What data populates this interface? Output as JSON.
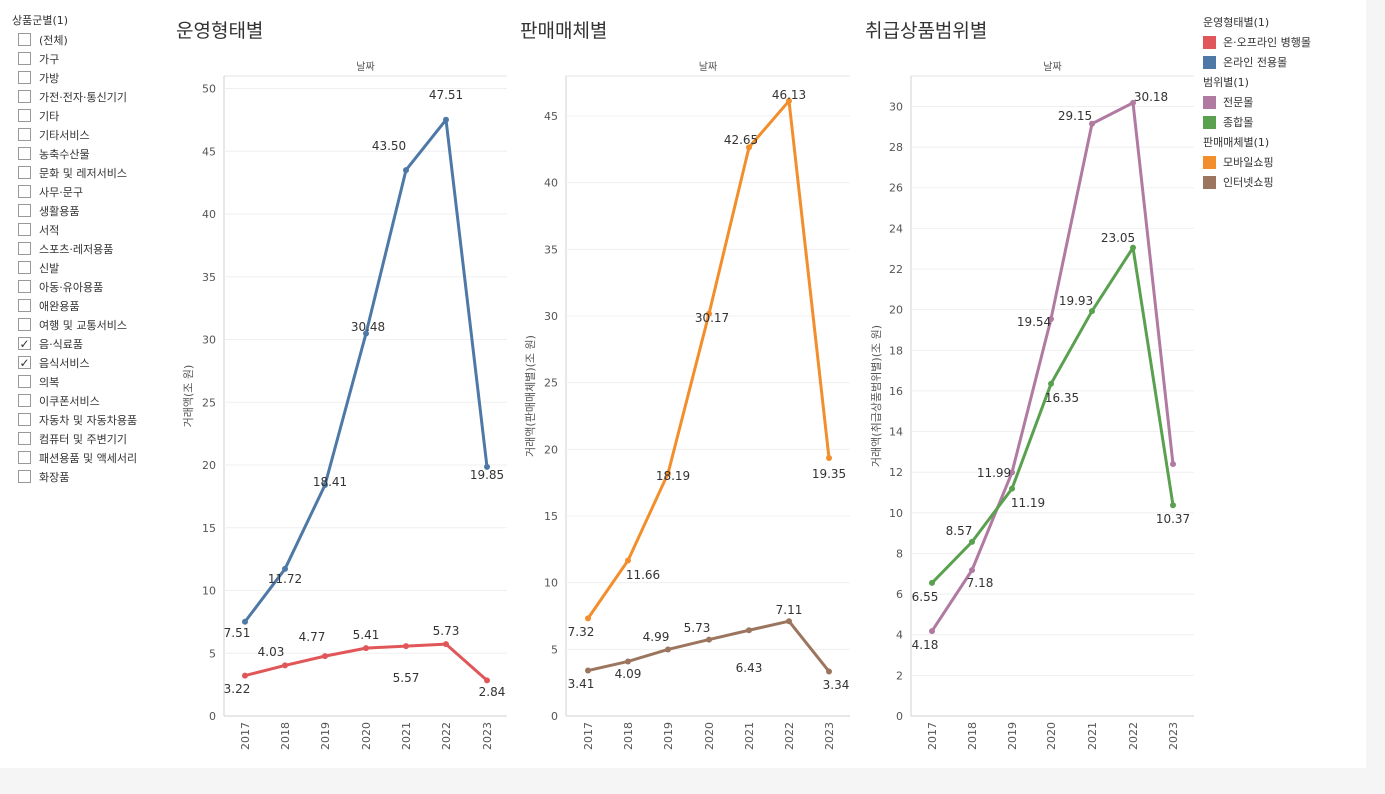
{
  "filter": {
    "title": "상품군별(1)",
    "items": [
      {
        "label": "(전체)",
        "checked": false
      },
      {
        "label": "가구",
        "checked": false
      },
      {
        "label": "가방",
        "checked": false
      },
      {
        "label": "가전·전자·통신기기",
        "checked": false
      },
      {
        "label": "기타",
        "checked": false
      },
      {
        "label": "기타서비스",
        "checked": false
      },
      {
        "label": "농축수산물",
        "checked": false
      },
      {
        "label": "문화 및 레저서비스",
        "checked": false
      },
      {
        "label": "사무·문구",
        "checked": false
      },
      {
        "label": "생활용품",
        "checked": false
      },
      {
        "label": "서적",
        "checked": false
      },
      {
        "label": "스포츠·레저용품",
        "checked": false
      },
      {
        "label": "신발",
        "checked": false
      },
      {
        "label": "아동·유아용품",
        "checked": false
      },
      {
        "label": "애완용품",
        "checked": false
      },
      {
        "label": "여행 및 교통서비스",
        "checked": false
      },
      {
        "label": "음·식료품",
        "checked": true
      },
      {
        "label": "음식서비스",
        "checked": true
      },
      {
        "label": "의복",
        "checked": false
      },
      {
        "label": "이쿠폰서비스",
        "checked": false
      },
      {
        "label": "자동차 및 자동차용품",
        "checked": false
      },
      {
        "label": "컴퓨터 및 주변기기",
        "checked": false
      },
      {
        "label": "패션용품 및 액세서리",
        "checked": false
      },
      {
        "label": "화장품",
        "checked": false
      }
    ]
  },
  "legend": {
    "groups": [
      {
        "title": "운영형태별(1)",
        "items": [
          {
            "label": "온·오프라인 병행몰",
            "color": "#e15759"
          },
          {
            "label": "온라인 전용몰",
            "color": "#4e79a7"
          }
        ]
      },
      {
        "title": "범위별(1)",
        "items": [
          {
            "label": "전문몰",
            "color": "#b07aa1"
          },
          {
            "label": "종합몰",
            "color": "#59a14f"
          }
        ]
      },
      {
        "title": "판매매체별(1)",
        "items": [
          {
            "label": "모바일쇼핑",
            "color": "#f28e2b"
          },
          {
            "label": "인터넷쇼핑",
            "color": "#9c755f"
          }
        ]
      }
    ]
  },
  "chart_data": [
    {
      "type": "line",
      "title": "운영형태별",
      "xlabel": "날짜",
      "ylabel": "거래액(조 원)",
      "x": [
        "2017",
        "2018",
        "2019",
        "2020",
        "2021",
        "2022",
        "2023"
      ],
      "ylim": [
        0,
        51
      ],
      "yticks": [
        0,
        5,
        10,
        15,
        20,
        25,
        30,
        35,
        40,
        45,
        50
      ],
      "grid": true,
      "series": [
        {
          "name": "온라인 전용몰",
          "color": "#4e79a7",
          "values": [
            7.51,
            11.72,
            18.41,
            30.48,
            43.5,
            47.51,
            19.85
          ],
          "labels": [
            "7.51",
            "11.72",
            "18.41",
            "30.48",
            "43.50",
            "47.51",
            "19.85"
          ]
        },
        {
          "name": "온·오프라인 병행몰",
          "color": "#e15759",
          "values": [
            3.22,
            4.03,
            4.77,
            5.41,
            5.57,
            5.73,
            2.84
          ],
          "labels": [
            "3.22",
            "4.03",
            "4.77",
            "5.41",
            "5.57",
            "5.73",
            "2.84"
          ]
        }
      ]
    },
    {
      "type": "line",
      "title": "판매매체별",
      "xlabel": "날짜",
      "ylabel": "거래액(판매매체별)(조 원)",
      "x": [
        "2017",
        "2018",
        "2019",
        "2020",
        "2021",
        "2022",
        "2023"
      ],
      "ylim": [
        0,
        48
      ],
      "yticks": [
        0,
        5,
        10,
        15,
        20,
        25,
        30,
        35,
        40,
        45
      ],
      "grid": true,
      "series": [
        {
          "name": "모바일쇼핑",
          "color": "#f28e2b",
          "values": [
            7.32,
            11.66,
            18.19,
            30.17,
            42.65,
            46.13,
            19.35
          ],
          "labels": [
            "7.32",
            "11.66",
            "18.19",
            "30.17",
            "42.65",
            "46.13",
            "19.35"
          ]
        },
        {
          "name": "인터넷쇼핑",
          "color": "#9c755f",
          "values": [
            3.41,
            4.09,
            4.99,
            5.73,
            6.43,
            7.11,
            3.34
          ],
          "labels": [
            "3.41",
            "4.09",
            "4.99",
            "5.73",
            "6.43",
            "7.11",
            "3.34"
          ]
        }
      ]
    },
    {
      "type": "line",
      "title": "취급상품범위별",
      "xlabel": "날짜",
      "ylabel": "거래액(취급상품범위별)(조 원)",
      "x": [
        "2017",
        "2018",
        "2019",
        "2020",
        "2021",
        "2022",
        "2023"
      ],
      "ylim": [
        0,
        31.5
      ],
      "yticks": [
        0,
        2,
        4,
        6,
        8,
        10,
        12,
        14,
        16,
        18,
        20,
        22,
        24,
        26,
        28,
        30
      ],
      "grid": true,
      "series": [
        {
          "name": "전문몰",
          "color": "#b07aa1",
          "values": [
            4.18,
            7.18,
            11.99,
            19.54,
            29.15,
            30.18,
            12.4
          ],
          "labels": [
            "4.18",
            "7.18",
            "11.99",
            "19.54",
            "29.15",
            "30.18",
            ""
          ]
        },
        {
          "name": "종합몰",
          "color": "#59a14f",
          "values": [
            6.55,
            8.57,
            11.19,
            16.35,
            19.93,
            23.05,
            10.37
          ],
          "labels": [
            "6.55",
            "8.57",
            "11.19",
            "16.35",
            "19.93",
            "23.05",
            "10.37"
          ]
        }
      ]
    }
  ]
}
